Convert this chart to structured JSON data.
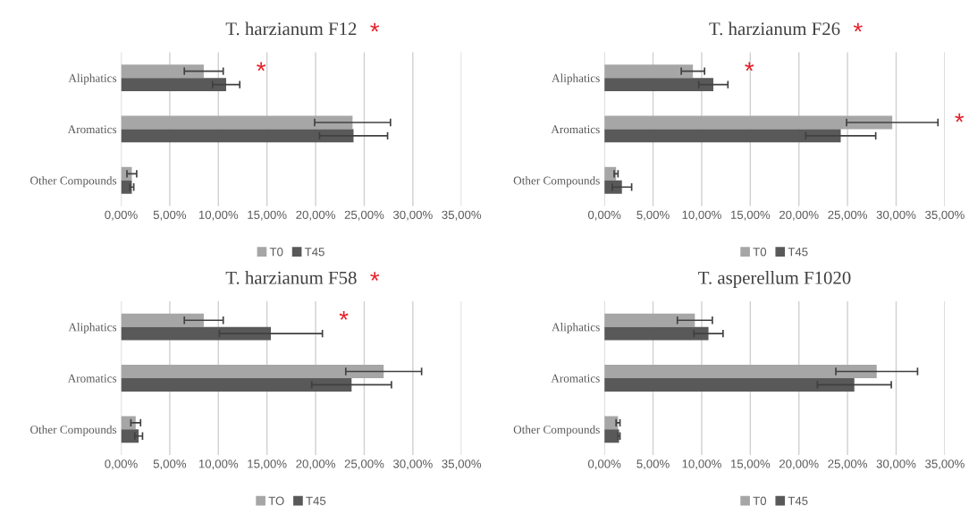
{
  "chart_data": [
    {
      "type": "bar",
      "orientation": "horizontal",
      "title": "T. harzianum F12",
      "categories": [
        "Aliphatics",
        "Aromatics",
        "Other Compounds"
      ],
      "series": [
        {
          "name": "T0",
          "color": "#a6a6a6",
          "values": [
            8.5,
            23.8,
            1.1
          ],
          "errors": [
            2.0,
            3.9,
            0.5
          ]
        },
        {
          "name": "T45",
          "color": "#595959",
          "values": [
            10.8,
            23.9,
            1.1
          ],
          "errors": [
            1.4,
            3.5,
            0.2
          ]
        }
      ],
      "xlim": [
        0,
        35
      ],
      "xticks": [
        {
          "value": 0,
          "label": "0,00%"
        },
        {
          "value": 5,
          "label": "5,00%"
        },
        {
          "value": 10,
          "label": "10,00%"
        },
        {
          "value": 15,
          "label": "15,00%"
        },
        {
          "value": 20,
          "label": "20,00%"
        },
        {
          "value": 25,
          "label": "25,00%"
        },
        {
          "value": 30,
          "label": "30,00%"
        },
        {
          "value": 35,
          "label": "35,00%"
        }
      ],
      "grid": "x",
      "legend": "bottom",
      "annotations": [
        "*",
        "*"
      ]
    },
    {
      "type": "bar",
      "orientation": "horizontal",
      "title": "T. harzianum F26",
      "categories": [
        "Aliphatics",
        "Aromatics",
        "Other Compounds"
      ],
      "series": [
        {
          "name": "T0",
          "color": "#a6a6a6",
          "values": [
            9.1,
            29.6,
            1.2
          ],
          "errors": [
            1.2,
            4.7,
            0.2
          ]
        },
        {
          "name": "T45",
          "color": "#595959",
          "values": [
            11.2,
            24.3,
            1.8
          ],
          "errors": [
            1.5,
            3.6,
            1.0
          ]
        }
      ],
      "xlim": [
        0,
        35
      ],
      "xticks": [
        {
          "value": 0,
          "label": "0,00%"
        },
        {
          "value": 5,
          "label": "5,00%"
        },
        {
          "value": 10,
          "label": "10,00%"
        },
        {
          "value": 15,
          "label": "15,00%"
        },
        {
          "value": 20,
          "label": "20,00%"
        },
        {
          "value": 25,
          "label": "25,00%"
        },
        {
          "value": 30,
          "label": "30,00%"
        },
        {
          "value": 35,
          "label": "35,00%"
        }
      ],
      "grid": "x",
      "legend": "bottom",
      "annotations": [
        "*",
        "*",
        "*"
      ]
    },
    {
      "type": "bar",
      "orientation": "horizontal",
      "title": "T. harzianum F58",
      "categories": [
        "Aliphatics",
        "Aromatics",
        "Other Compounds"
      ],
      "series": [
        {
          "name": "TO",
          "color": "#a6a6a6",
          "values": [
            8.5,
            27.0,
            1.5
          ],
          "errors": [
            2.0,
            3.9,
            0.5
          ]
        },
        {
          "name": "T45",
          "color": "#595959",
          "values": [
            15.4,
            23.7,
            1.8
          ],
          "errors": [
            5.3,
            4.1,
            0.4
          ]
        }
      ],
      "xlim": [
        0,
        35
      ],
      "xticks": [
        {
          "value": 0,
          "label": "0,00%"
        },
        {
          "value": 5,
          "label": "5,00%"
        },
        {
          "value": 10,
          "label": "10,00%"
        },
        {
          "value": 15,
          "label": "15,00%"
        },
        {
          "value": 20,
          "label": "20,00%"
        },
        {
          "value": 25,
          "label": "25,00%"
        },
        {
          "value": 30,
          "label": "30,00%"
        },
        {
          "value": 35,
          "label": "35,00%"
        }
      ],
      "grid": "x",
      "legend": "bottom",
      "annotations": [
        "*",
        "*"
      ]
    },
    {
      "type": "bar",
      "orientation": "horizontal",
      "title": "T. asperellum F1020",
      "categories": [
        "Aliphatics",
        "Aromatics",
        "Other Compounds"
      ],
      "series": [
        {
          "name": "T0",
          "color": "#a6a6a6",
          "values": [
            9.3,
            28.0,
            1.4
          ],
          "errors": [
            1.8,
            4.2,
            0.2
          ]
        },
        {
          "name": "T45",
          "color": "#595959",
          "values": [
            10.7,
            25.7,
            1.5
          ],
          "errors": [
            1.5,
            3.8,
            0.1
          ]
        }
      ],
      "xlim": [
        0,
        35
      ],
      "xticks": [
        {
          "value": 0,
          "label": "0,00%"
        },
        {
          "value": 5,
          "label": "5,00%"
        },
        {
          "value": 10,
          "label": "10,00%"
        },
        {
          "value": 15,
          "label": "15,00%"
        },
        {
          "value": 20,
          "label": "20,00%"
        },
        {
          "value": 25,
          "label": "25,00%"
        },
        {
          "value": 30,
          "label": "30,00%"
        },
        {
          "value": 35,
          "label": "35,00%"
        }
      ],
      "grid": "x",
      "legend": "bottom"
    }
  ]
}
